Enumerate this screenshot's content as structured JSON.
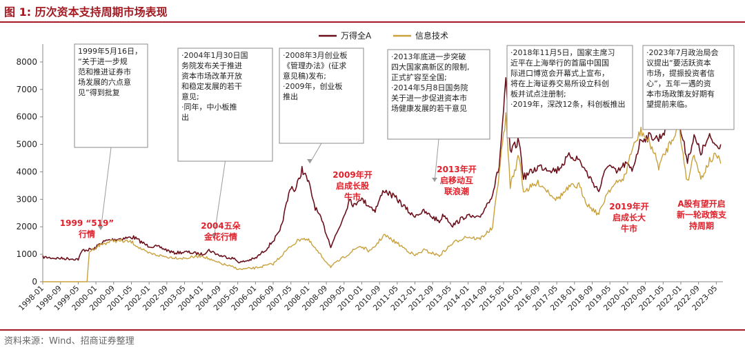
{
  "figure": {
    "title": "图 1:  历次资本支持周期市场表现",
    "source": "资料来源：Wind、招商证券整理",
    "accent_color": "#a31a22"
  },
  "chart_data": {
    "type": "line",
    "y_ticks": [
      "0",
      "1000",
      "2000",
      "3000",
      "4000",
      "5000",
      "6000",
      "7000",
      "8000"
    ],
    "ylim": [
      0,
      8500
    ],
    "x_tick_labels": [
      "1998-01",
      "1998-09",
      "1999-05",
      "2000-01",
      "2000-09",
      "2001-05",
      "2002-01",
      "2002-09",
      "2003-05",
      "2004-01",
      "2004-09",
      "2005-05",
      "2006-01",
      "2006-09",
      "2007-05",
      "2008-01",
      "2008-09",
      "2009-05",
      "2010-01",
      "2010-09",
      "2011-05",
      "2012-01",
      "2012-09",
      "2013-05",
      "2014-01",
      "2014-09",
      "2015-05",
      "2016-01",
      "2016-09",
      "2017-05",
      "2018-01",
      "2018-09",
      "2019-05",
      "2020-01",
      "2020-09",
      "2021-05",
      "2022-01",
      "2022-09",
      "2023-05"
    ],
    "grid": false,
    "legend_position": "top-center",
    "series": [
      {
        "name": "万得全A",
        "color": "#6b0f1a",
        "points": [
          [
            "1998-01",
            900
          ],
          [
            "1998-06",
            860
          ],
          [
            "1999-01",
            840
          ],
          [
            "1999-05",
            820
          ],
          [
            "1999-07",
            1150
          ],
          [
            "1999-12",
            1180
          ],
          [
            "2000-03",
            1400
          ],
          [
            "2000-06",
            1500
          ],
          [
            "2000-10",
            1550
          ],
          [
            "2001-06",
            1620
          ],
          [
            "2001-12",
            1320
          ],
          [
            "2002-06",
            1250
          ],
          [
            "2002-12",
            1050
          ],
          [
            "2003-06",
            1080
          ],
          [
            "2004-01",
            1000
          ],
          [
            "2004-04",
            1150
          ],
          [
            "2004-09",
            950
          ],
          [
            "2005-03",
            850
          ],
          [
            "2005-06",
            700
          ],
          [
            "2006-01",
            850
          ],
          [
            "2006-06",
            1200
          ],
          [
            "2006-12",
            1800
          ],
          [
            "2007-05",
            3500
          ],
          [
            "2007-07",
            3300
          ],
          [
            "2007-10",
            4100
          ],
          [
            "2008-01",
            3600
          ],
          [
            "2008-04",
            2700
          ],
          [
            "2008-07",
            2200
          ],
          [
            "2008-11",
            1300
          ],
          [
            "2009-03",
            2000
          ],
          [
            "2009-08",
            3100
          ],
          [
            "2009-09",
            2700
          ],
          [
            "2009-12",
            3050
          ],
          [
            "2010-07",
            2600
          ],
          [
            "2010-11",
            3350
          ],
          [
            "2011-05",
            3000
          ],
          [
            "2011-12",
            2400
          ],
          [
            "2012-05",
            2550
          ],
          [
            "2012-12",
            2200
          ],
          [
            "2013-02",
            2450
          ],
          [
            "2013-06",
            2050
          ],
          [
            "2013-12",
            2400
          ],
          [
            "2014-06",
            2300
          ],
          [
            "2014-12",
            3200
          ],
          [
            "2015-03",
            4200
          ],
          [
            "2015-06",
            7250
          ],
          [
            "2015-08",
            4700
          ],
          [
            "2015-12",
            5150
          ],
          [
            "2016-02",
            3800
          ],
          [
            "2016-09",
            4200
          ],
          [
            "2017-05",
            4050
          ],
          [
            "2017-11",
            4600
          ],
          [
            "2018-03",
            4450
          ],
          [
            "2018-07",
            3900
          ],
          [
            "2018-12",
            3300
          ],
          [
            "2019-04",
            4300
          ],
          [
            "2019-08",
            3950
          ],
          [
            "2019-12",
            4300
          ],
          [
            "2020-03",
            4050
          ],
          [
            "2020-07",
            5200
          ],
          [
            "2020-12",
            5300
          ],
          [
            "2021-03",
            5200
          ],
          [
            "2021-09",
            5900
          ],
          [
            "2021-12",
            5800
          ],
          [
            "2022-04",
            4450
          ],
          [
            "2022-07",
            5250
          ],
          [
            "2022-10",
            4700
          ],
          [
            "2023-02",
            5250
          ],
          [
            "2023-05",
            4950
          ],
          [
            "2023-07",
            5000
          ]
        ]
      },
      {
        "name": "信息技术",
        "color": "#c8a13c",
        "points": [
          [
            "1998-01",
            0
          ],
          [
            "1999-09",
            0
          ],
          [
            "1999-10",
            1100
          ],
          [
            "2000-03",
            1350
          ],
          [
            "2000-09",
            1500
          ],
          [
            "2001-05",
            1450
          ],
          [
            "2001-12",
            1050
          ],
          [
            "2002-09",
            900
          ],
          [
            "2003-05",
            850
          ],
          [
            "2004-01",
            950
          ],
          [
            "2004-06",
            750
          ],
          [
            "2005-06",
            450
          ],
          [
            "2006-01",
            500
          ],
          [
            "2006-09",
            650
          ],
          [
            "2007-05",
            1300
          ],
          [
            "2007-10",
            1600
          ],
          [
            "2008-01",
            1500
          ],
          [
            "2008-06",
            1000
          ],
          [
            "2008-11",
            550
          ],
          [
            "2009-05",
            900
          ],
          [
            "2009-12",
            1300
          ],
          [
            "2010-05",
            1100
          ],
          [
            "2010-11",
            1700
          ],
          [
            "2011-05",
            1400
          ],
          [
            "2012-01",
            950
          ],
          [
            "2012-05",
            1150
          ],
          [
            "2012-12",
            950
          ],
          [
            "2013-06",
            1400
          ],
          [
            "2013-12",
            1650
          ],
          [
            "2014-06",
            1550
          ],
          [
            "2014-12",
            1950
          ],
          [
            "2015-06",
            6000
          ],
          [
            "2015-08",
            3500
          ],
          [
            "2015-12",
            4600
          ],
          [
            "2016-02",
            3300
          ],
          [
            "2016-09",
            3600
          ],
          [
            "2017-05",
            3000
          ],
          [
            "2017-11",
            3450
          ],
          [
            "2018-03",
            3500
          ],
          [
            "2018-07",
            2800
          ],
          [
            "2018-12",
            2450
          ],
          [
            "2019-04",
            3300
          ],
          [
            "2019-12",
            3850
          ],
          [
            "2020-02",
            4600
          ],
          [
            "2020-07",
            5500
          ],
          [
            "2020-12",
            4900
          ],
          [
            "2021-03",
            4200
          ],
          [
            "2021-09",
            5200
          ],
          [
            "2021-12",
            5700
          ],
          [
            "2022-04",
            3600
          ],
          [
            "2022-07",
            4700
          ],
          [
            "2022-10",
            3750
          ],
          [
            "2023-02",
            4400
          ],
          [
            "2023-05",
            4600
          ],
          [
            "2023-07",
            4300
          ]
        ]
      }
    ],
    "text_boxes": [
      {
        "text": "1999年5月16日，\n“关于进一步规\n范和推进证券市\n场发展的六点意\n见”得到批复",
        "anchor": "1999-07"
      },
      {
        "text": "·2004年1月30日国\n务院发布关于推进\n资本市场改革开放\n和稳定发展的若干\n意见;\n·同年，中小板推\n出",
        "anchor": "2004-06"
      },
      {
        "text": "·2008年3月创业板\n《管理办法》(征求\n意见稿)发布;\n·2009年，创业板\n推出",
        "anchor": "2008-03"
      },
      {
        "text": "·2013年底进一步突破\n四大国家高新区的限制,\n正式扩容至全国;\n·2014年5月8日国务院\n关于进一步促进资本市\n场健康发展的若干意见",
        "anchor": "2014-04"
      },
      {
        "text": "·2018年11月5日，国家主席习\n近平在上海举行的首届中国国\n际进口博览会开幕式上宣布，\n将在上海证券交易所设立科创\n板并试点注册制;\n·2019年，深改12条，科创板推出",
        "anchor": "2019-06"
      },
      {
        "text": "·2023年7月政治局会\n议提出“要活跃资本\n市场，提振投资者信\n心”，五年一遇的资\n本市场政策友好期有\n望提前来临。",
        "anchor": "2023-06"
      }
    ],
    "annotations": [
      {
        "text": "1999 “519”\n行情"
      },
      {
        "text": "2004五朵\n金花行情"
      },
      {
        "text": "2009年开\n启成长股\n牛市"
      },
      {
        "text": "2013年开\n启移动互\n联浪潮"
      },
      {
        "text": "2019年开\n启成长大\n牛市"
      },
      {
        "text": "A股有望开启\n新一轮政策支\n持周期"
      }
    ]
  }
}
